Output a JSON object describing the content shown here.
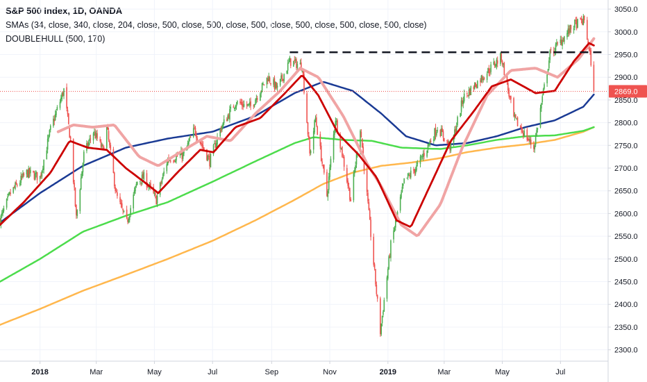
{
  "legend": {
    "title": "S&P 500 Index, 1D, OANDA",
    "line2": "SMAs (34, close, 340, close, 204, close, 500, close, 500, close, 500, close, 500, close, 500, close, 500, close)",
    "line3": "DOUBLEHULL (500, 170)"
  },
  "colors": {
    "up": "#4caf50",
    "down": "#ef5350",
    "sma34": "#cc0000",
    "sma340": "#ffb74d",
    "sma204": "#4cdc4c",
    "hull_long": "#1a3a94",
    "hull_short": "#f0a4a4",
    "resistance": "#131722",
    "price_line": "#ef5350"
  },
  "chart_data": {
    "type": "candlestick",
    "ylim": [
      2275,
      3070
    ],
    "y_ticks": [
      2300,
      2350,
      2400,
      2450,
      2500,
      2550,
      2600,
      2650,
      2700,
      2750,
      2800,
      2850,
      2900,
      2950,
      3000,
      3050
    ],
    "y_tick_labels": [
      "2300.0",
      "2350.0",
      "2400.0",
      "2450.0",
      "2500.0",
      "2550.0",
      "2600.0",
      "2650.0",
      "2700.0",
      "2750.0",
      "2800.0",
      "2850.0",
      "2900.0",
      "2950.0",
      "3000.0",
      "3050.0"
    ],
    "x_range": [
      "2017-11-20",
      "2019-08-20"
    ],
    "x_ticks": [
      {
        "date": "2018-01-01",
        "label": "2018",
        "bold": true
      },
      {
        "date": "2018-03-01",
        "label": "Mar",
        "bold": false
      },
      {
        "date": "2018-05-01",
        "label": "May",
        "bold": false
      },
      {
        "date": "2018-07-01",
        "label": "Jul",
        "bold": false
      },
      {
        "date": "2018-09-01",
        "label": "Sep",
        "bold": false
      },
      {
        "date": "2018-11-01",
        "label": "Nov",
        "bold": false
      },
      {
        "date": "2019-01-01",
        "label": "2019",
        "bold": true
      },
      {
        "date": "2019-03-01",
        "label": "Mar",
        "bold": false
      },
      {
        "date": "2019-05-01",
        "label": "May",
        "bold": false
      },
      {
        "date": "2019-07-01",
        "label": "Jul",
        "bold": false
      }
    ],
    "last_price": 2869.0,
    "last_price_label": "2869.0",
    "resistance": {
      "value": 2955,
      "from": "2018-09-20",
      "to": "2019-08-15"
    },
    "price_path": [
      {
        "date": "2017-11-20",
        "close": 2585
      },
      {
        "date": "2017-12-01",
        "close": 2645
      },
      {
        "date": "2017-12-18",
        "close": 2690
      },
      {
        "date": "2018-01-01",
        "close": 2680
      },
      {
        "date": "2018-01-12",
        "close": 2785
      },
      {
        "date": "2018-01-26",
        "close": 2872
      },
      {
        "date": "2018-02-02",
        "close": 2760
      },
      {
        "date": "2018-02-08",
        "close": 2590
      },
      {
        "date": "2018-02-16",
        "close": 2730
      },
      {
        "date": "2018-02-26",
        "close": 2780
      },
      {
        "date": "2018-03-08",
        "close": 2740
      },
      {
        "date": "2018-03-12",
        "close": 2790
      },
      {
        "date": "2018-03-22",
        "close": 2640
      },
      {
        "date": "2018-04-02",
        "close": 2580
      },
      {
        "date": "2018-04-13",
        "close": 2670
      },
      {
        "date": "2018-04-20",
        "close": 2680
      },
      {
        "date": "2018-05-03",
        "close": 2630
      },
      {
        "date": "2018-05-15",
        "close": 2720
      },
      {
        "date": "2018-06-01",
        "close": 2730
      },
      {
        "date": "2018-06-12",
        "close": 2785
      },
      {
        "date": "2018-06-28",
        "close": 2715
      },
      {
        "date": "2018-07-09",
        "close": 2785
      },
      {
        "date": "2018-07-25",
        "close": 2845
      },
      {
        "date": "2018-08-10",
        "close": 2835
      },
      {
        "date": "2018-08-28",
        "close": 2900
      },
      {
        "date": "2018-09-07",
        "close": 2875
      },
      {
        "date": "2018-09-20",
        "close": 2935
      },
      {
        "date": "2018-10-03",
        "close": 2925
      },
      {
        "date": "2018-10-11",
        "close": 2730
      },
      {
        "date": "2018-10-17",
        "close": 2810
      },
      {
        "date": "2018-10-29",
        "close": 2640
      },
      {
        "date": "2018-11-07",
        "close": 2810
      },
      {
        "date": "2018-11-23",
        "close": 2630
      },
      {
        "date": "2018-12-03",
        "close": 2790
      },
      {
        "date": "2018-12-10",
        "close": 2640
      },
      {
        "date": "2018-12-24",
        "close": 2340
      },
      {
        "date": "2019-01-04",
        "close": 2530
      },
      {
        "date": "2019-01-18",
        "close": 2670
      },
      {
        "date": "2019-02-01",
        "close": 2705
      },
      {
        "date": "2019-02-22",
        "close": 2790
      },
      {
        "date": "2019-03-08",
        "close": 2745
      },
      {
        "date": "2019-03-21",
        "close": 2855
      },
      {
        "date": "2019-04-12",
        "close": 2905
      },
      {
        "date": "2019-04-30",
        "close": 2945
      },
      {
        "date": "2019-05-13",
        "close": 2810
      },
      {
        "date": "2019-06-03",
        "close": 2745
      },
      {
        "date": "2019-06-20",
        "close": 2950
      },
      {
        "date": "2019-07-15",
        "close": 3015
      },
      {
        "date": "2019-07-26",
        "close": 3025
      },
      {
        "date": "2019-08-02",
        "close": 2935
      },
      {
        "date": "2019-08-05",
        "close": 2869
      }
    ],
    "series": [
      {
        "key": "sma34",
        "points": [
          {
            "date": "2017-11-20",
            "value": 2575
          },
          {
            "date": "2017-12-15",
            "value": 2625
          },
          {
            "date": "2018-01-12",
            "value": 2690
          },
          {
            "date": "2018-02-01",
            "value": 2760
          },
          {
            "date": "2018-02-20",
            "value": 2745
          },
          {
            "date": "2018-03-12",
            "value": 2740
          },
          {
            "date": "2018-04-01",
            "value": 2700
          },
          {
            "date": "2018-04-23",
            "value": 2665
          },
          {
            "date": "2018-05-05",
            "value": 2645
          },
          {
            "date": "2018-05-25",
            "value": 2690
          },
          {
            "date": "2018-06-18",
            "value": 2740
          },
          {
            "date": "2018-07-02",
            "value": 2735
          },
          {
            "date": "2018-07-25",
            "value": 2790
          },
          {
            "date": "2018-08-20",
            "value": 2810
          },
          {
            "date": "2018-09-15",
            "value": 2865
          },
          {
            "date": "2018-10-03",
            "value": 2905
          },
          {
            "date": "2018-10-20",
            "value": 2860
          },
          {
            "date": "2018-11-10",
            "value": 2775
          },
          {
            "date": "2018-12-01",
            "value": 2730
          },
          {
            "date": "2018-12-20",
            "value": 2680
          },
          {
            "date": "2019-01-10",
            "value": 2585
          },
          {
            "date": "2019-01-25",
            "value": 2570
          },
          {
            "date": "2019-02-15",
            "value": 2665
          },
          {
            "date": "2019-03-08",
            "value": 2760
          },
          {
            "date": "2019-04-01",
            "value": 2825
          },
          {
            "date": "2019-04-20",
            "value": 2880
          },
          {
            "date": "2019-05-10",
            "value": 2895
          },
          {
            "date": "2019-06-05",
            "value": 2865
          },
          {
            "date": "2019-06-25",
            "value": 2870
          },
          {
            "date": "2019-07-15",
            "value": 2935
          },
          {
            "date": "2019-07-31",
            "value": 2975
          },
          {
            "date": "2019-08-05",
            "value": 2970
          }
        ]
      },
      {
        "key": "hull_short",
        "points": [
          {
            "date": "2018-01-20",
            "value": 2780
          },
          {
            "date": "2018-02-05",
            "value": 2795
          },
          {
            "date": "2018-02-25",
            "value": 2790
          },
          {
            "date": "2018-03-20",
            "value": 2795
          },
          {
            "date": "2018-04-15",
            "value": 2725
          },
          {
            "date": "2018-05-05",
            "value": 2705
          },
          {
            "date": "2018-06-01",
            "value": 2740
          },
          {
            "date": "2018-06-25",
            "value": 2770
          },
          {
            "date": "2018-07-20",
            "value": 2760
          },
          {
            "date": "2018-08-15",
            "value": 2820
          },
          {
            "date": "2018-09-10",
            "value": 2870
          },
          {
            "date": "2018-10-01",
            "value": 2920
          },
          {
            "date": "2018-10-20",
            "value": 2900
          },
          {
            "date": "2018-11-15",
            "value": 2815
          },
          {
            "date": "2018-12-10",
            "value": 2710
          },
          {
            "date": "2018-12-25",
            "value": 2660
          },
          {
            "date": "2019-01-15",
            "value": 2575
          },
          {
            "date": "2019-02-01",
            "value": 2550
          },
          {
            "date": "2019-02-25",
            "value": 2620
          },
          {
            "date": "2019-03-20",
            "value": 2745
          },
          {
            "date": "2019-04-15",
            "value": 2860
          },
          {
            "date": "2019-05-10",
            "value": 2915
          },
          {
            "date": "2019-06-05",
            "value": 2920
          },
          {
            "date": "2019-06-28",
            "value": 2900
          },
          {
            "date": "2019-07-20",
            "value": 2940
          },
          {
            "date": "2019-08-05",
            "value": 2985
          }
        ]
      },
      {
        "key": "hull_long",
        "points": [
          {
            "date": "2017-11-20",
            "value": 2580
          },
          {
            "date": "2018-01-01",
            "value": 2645
          },
          {
            "date": "2018-02-15",
            "value": 2705
          },
          {
            "date": "2018-04-01",
            "value": 2745
          },
          {
            "date": "2018-05-15",
            "value": 2765
          },
          {
            "date": "2018-07-01",
            "value": 2780
          },
          {
            "date": "2018-08-15",
            "value": 2815
          },
          {
            "date": "2018-09-25",
            "value": 2865
          },
          {
            "date": "2018-10-25",
            "value": 2890
          },
          {
            "date": "2018-11-25",
            "value": 2870
          },
          {
            "date": "2018-12-25",
            "value": 2820
          },
          {
            "date": "2019-01-20",
            "value": 2770
          },
          {
            "date": "2019-02-20",
            "value": 2750
          },
          {
            "date": "2019-03-25",
            "value": 2755
          },
          {
            "date": "2019-04-25",
            "value": 2770
          },
          {
            "date": "2019-05-25",
            "value": 2790
          },
          {
            "date": "2019-06-25",
            "value": 2805
          },
          {
            "date": "2019-07-25",
            "value": 2835
          },
          {
            "date": "2019-08-05",
            "value": 2862
          }
        ]
      },
      {
        "key": "sma204",
        "points": [
          {
            "date": "2017-11-20",
            "value": 2450
          },
          {
            "date": "2018-01-01",
            "value": 2500
          },
          {
            "date": "2018-02-15",
            "value": 2560
          },
          {
            "date": "2018-04-01",
            "value": 2595
          },
          {
            "date": "2018-05-15",
            "value": 2625
          },
          {
            "date": "2018-07-01",
            "value": 2670
          },
          {
            "date": "2018-08-15",
            "value": 2715
          },
          {
            "date": "2018-09-25",
            "value": 2755
          },
          {
            "date": "2018-10-15",
            "value": 2768
          },
          {
            "date": "2018-11-15",
            "value": 2762
          },
          {
            "date": "2018-12-15",
            "value": 2760
          },
          {
            "date": "2019-01-15",
            "value": 2745
          },
          {
            "date": "2019-02-25",
            "value": 2742
          },
          {
            "date": "2019-03-25",
            "value": 2750
          },
          {
            "date": "2019-04-25",
            "value": 2762
          },
          {
            "date": "2019-05-25",
            "value": 2770
          },
          {
            "date": "2019-06-25",
            "value": 2772
          },
          {
            "date": "2019-07-25",
            "value": 2782
          },
          {
            "date": "2019-08-05",
            "value": 2790
          }
        ]
      },
      {
        "key": "sma340",
        "points": [
          {
            "date": "2017-11-20",
            "value": 2355
          },
          {
            "date": "2018-01-01",
            "value": 2390
          },
          {
            "date": "2018-02-15",
            "value": 2430
          },
          {
            "date": "2018-04-01",
            "value": 2465
          },
          {
            "date": "2018-05-15",
            "value": 2500
          },
          {
            "date": "2018-07-01",
            "value": 2540
          },
          {
            "date": "2018-08-15",
            "value": 2585
          },
          {
            "date": "2018-09-25",
            "value": 2630
          },
          {
            "date": "2018-10-25",
            "value": 2665
          },
          {
            "date": "2018-11-25",
            "value": 2690
          },
          {
            "date": "2018-12-25",
            "value": 2705
          },
          {
            "date": "2019-01-25",
            "value": 2712
          },
          {
            "date": "2019-02-25",
            "value": 2722
          },
          {
            "date": "2019-03-25",
            "value": 2735
          },
          {
            "date": "2019-04-25",
            "value": 2745
          },
          {
            "date": "2019-05-25",
            "value": 2752
          },
          {
            "date": "2019-06-25",
            "value": 2762
          },
          {
            "date": "2019-07-25",
            "value": 2780
          },
          {
            "date": "2019-08-05",
            "value": 2790
          }
        ]
      }
    ]
  }
}
